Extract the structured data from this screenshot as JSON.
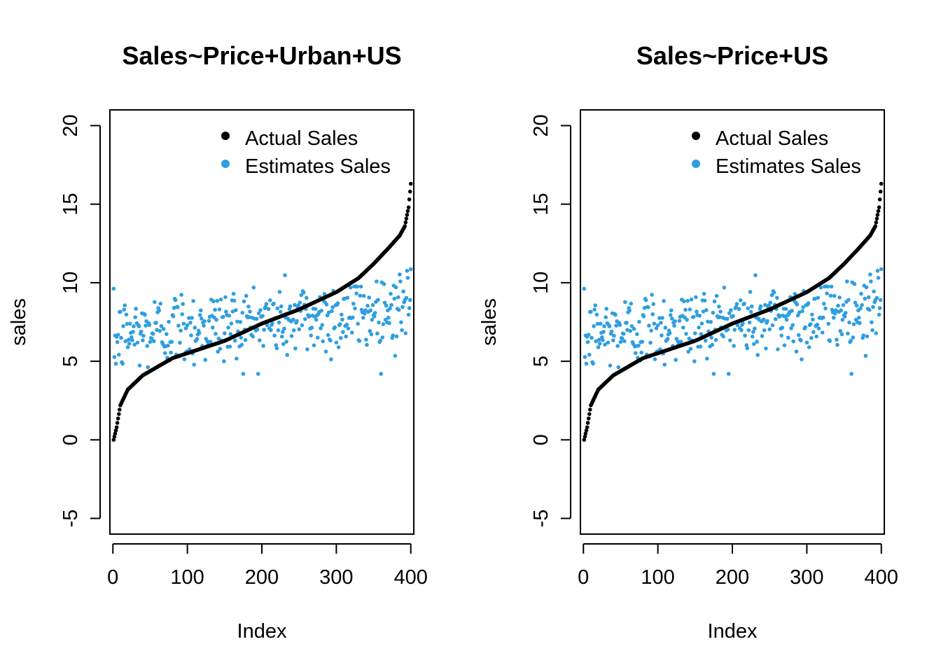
{
  "chart_data": [
    {
      "type": "scatter",
      "title": "Sales~Price+Urban+US",
      "xlabel": "Index",
      "ylabel": "sales",
      "xlim": [
        -4,
        404
      ],
      "ylim": [
        -6,
        21
      ],
      "xticks": [
        0,
        100,
        200,
        300,
        400
      ],
      "yticks": [
        -5,
        0,
        5,
        10,
        15,
        20
      ],
      "legend": {
        "position": "top-right",
        "entries": [
          "Actual Sales",
          "Estimates Sales"
        ]
      },
      "colors": {
        "actual": "#000000",
        "estimates": "#2e9ee0"
      },
      "actual_sales": {
        "n": 400,
        "description_points": [
          [
            1,
            0.0
          ],
          [
            5,
            0.8
          ],
          [
            10,
            2.2
          ],
          [
            20,
            3.2
          ],
          [
            40,
            4.1
          ],
          [
            80,
            5.2
          ],
          [
            150,
            6.3
          ],
          [
            200,
            7.4
          ],
          [
            250,
            8.3
          ],
          [
            300,
            9.4
          ],
          [
            330,
            10.3
          ],
          [
            350,
            11.2
          ],
          [
            370,
            12.2
          ],
          [
            385,
            13.0
          ],
          [
            392,
            13.6
          ],
          [
            397,
            14.8
          ],
          [
            400,
            16.3
          ]
        ]
      },
      "estimated_sales": {
        "n": 400,
        "range": [
          4.2,
          11.7
        ],
        "mean": 7.5
      }
    },
    {
      "type": "scatter",
      "title": "Sales~Price+US",
      "xlabel": "Index",
      "ylabel": "sales",
      "xlim": [
        -4,
        404
      ],
      "ylim": [
        -6,
        21
      ],
      "xticks": [
        0,
        100,
        200,
        300,
        400
      ],
      "yticks": [
        -5,
        0,
        5,
        10,
        15,
        20
      ],
      "legend": {
        "position": "top-right",
        "entries": [
          "Actual Sales",
          "Estimates Sales"
        ]
      },
      "colors": {
        "actual": "#000000",
        "estimates": "#2e9ee0"
      },
      "actual_sales": {
        "n": 400,
        "description_points": [
          [
            1,
            0.0
          ],
          [
            5,
            0.8
          ],
          [
            10,
            2.2
          ],
          [
            20,
            3.2
          ],
          [
            40,
            4.1
          ],
          [
            80,
            5.2
          ],
          [
            150,
            6.3
          ],
          [
            200,
            7.4
          ],
          [
            250,
            8.3
          ],
          [
            300,
            9.4
          ],
          [
            330,
            10.3
          ],
          [
            350,
            11.2
          ],
          [
            370,
            12.2
          ],
          [
            385,
            13.0
          ],
          [
            392,
            13.6
          ],
          [
            397,
            14.8
          ],
          [
            400,
            16.3
          ]
        ]
      },
      "estimated_sales": {
        "n": 400,
        "range": [
          4.2,
          11.7
        ],
        "mean": 7.5
      }
    }
  ]
}
